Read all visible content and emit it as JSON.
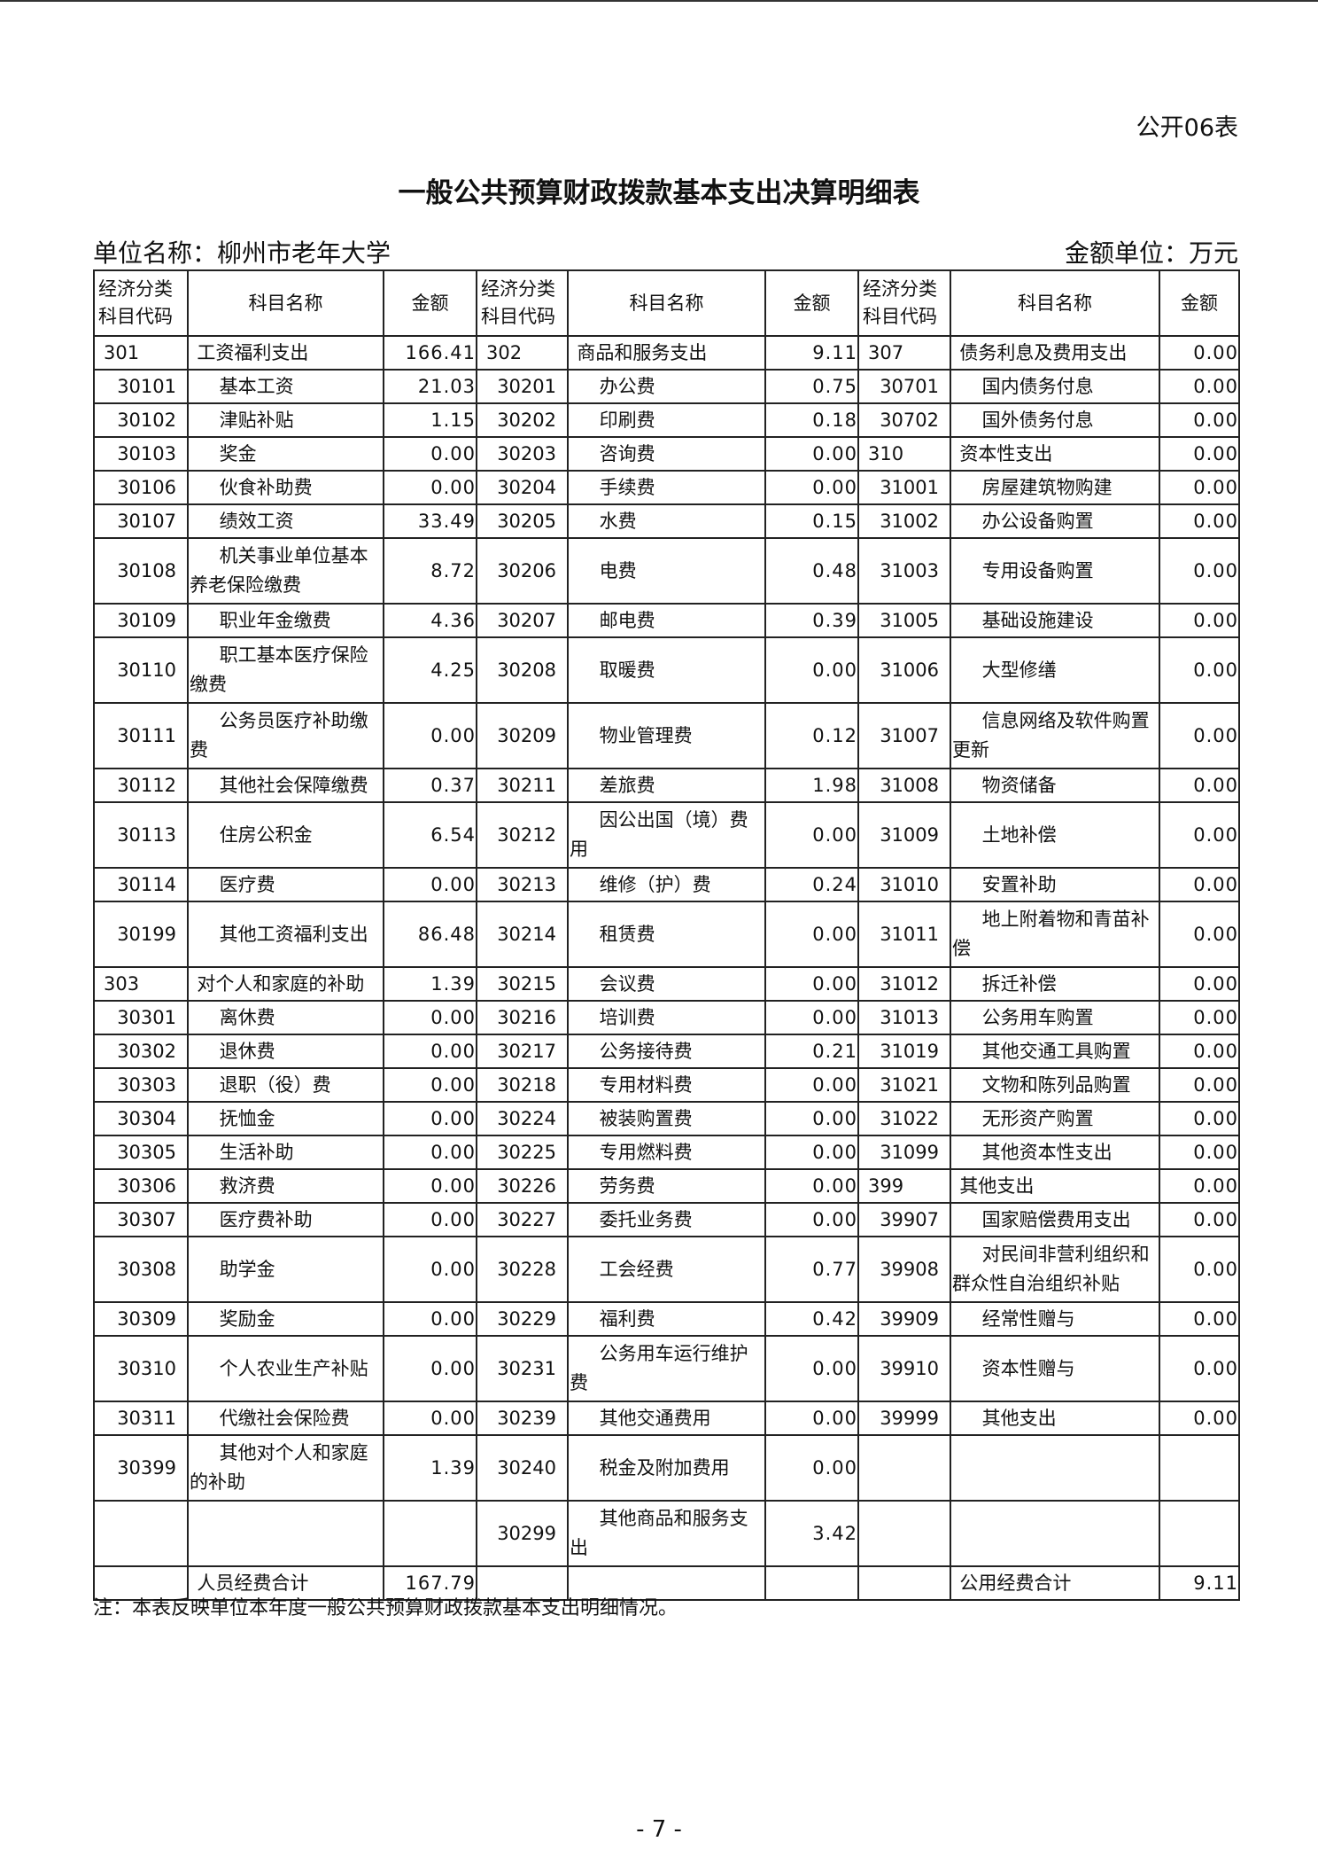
{
  "form_number": "公开06表",
  "title": "一般公共预算财政拨款基本支出决算明细表",
  "unit_name": "单位名称：柳州市老年大学",
  "amount_unit": "金额单位：万元",
  "headers": [
    "经济分类科目代码",
    "科目名称",
    "金额",
    "经济分类科目代码",
    "科目名称",
    "金额",
    "经济分类科目代码",
    "科目名称",
    "金额"
  ],
  "rows": [
    [
      "301",
      "工资福利支出",
      "166.41",
      "302",
      "商品和服务支出",
      "9.11",
      "307",
      "债务利息及费用支出",
      "0.00"
    ],
    [
      "30101",
      "基本工资",
      "21.03",
      "30201",
      "办公费",
      "0.75",
      "30701",
      "国内债务付息",
      "0.00"
    ],
    [
      "30102",
      "津贴补贴",
      "1.15",
      "30202",
      "印刷费",
      "0.18",
      "30702",
      "国外债务付息",
      "0.00"
    ],
    [
      "30103",
      "奖金",
      "0.00",
      "30203",
      "咨询费",
      "0.00",
      "310",
      "资本性支出",
      "0.00"
    ],
    [
      "30106",
      "伙食补助费",
      "0.00",
      "30204",
      "手续费",
      "0.00",
      "31001",
      "房屋建筑物购建",
      "0.00"
    ],
    [
      "30107",
      "绩效工资",
      "33.49",
      "30205",
      "水费",
      "0.15",
      "31002",
      "办公设备购置",
      "0.00"
    ],
    [
      "30108",
      "机关事业单位基本养老保险缴费",
      "8.72",
      "30206",
      "电费",
      "0.48",
      "31003",
      "专用设备购置",
      "0.00"
    ],
    [
      "30109",
      "职业年金缴费",
      "4.36",
      "30207",
      "邮电费",
      "0.39",
      "31005",
      "基础设施建设",
      "0.00"
    ],
    [
      "30110",
      "职工基本医疗保险缴费",
      "4.25",
      "30208",
      "取暖费",
      "0.00",
      "31006",
      "大型修缮",
      "0.00"
    ],
    [
      "30111",
      "公务员医疗补助缴费",
      "0.00",
      "30209",
      "物业管理费",
      "0.12",
      "31007",
      "信息网络及软件购置更新",
      "0.00"
    ],
    [
      "30112",
      "其他社会保障缴费",
      "0.37",
      "30211",
      "差旅费",
      "1.98",
      "31008",
      "物资储备",
      "0.00"
    ],
    [
      "30113",
      "住房公积金",
      "6.54",
      "30212",
      "因公出国（境）费用",
      "0.00",
      "31009",
      "土地补偿",
      "0.00"
    ],
    [
      "30114",
      "医疗费",
      "0.00",
      "30213",
      "维修（护）费",
      "0.24",
      "31010",
      "安置补助",
      "0.00"
    ],
    [
      "30199",
      "其他工资福利支出",
      "86.48",
      "30214",
      "租赁费",
      "0.00",
      "31011",
      "地上附着物和青苗补偿",
      "0.00"
    ],
    [
      "303",
      "对个人和家庭的补助",
      "1.39",
      "30215",
      "会议费",
      "0.00",
      "31012",
      "拆迁补偿",
      "0.00"
    ],
    [
      "30301",
      "离休费",
      "0.00",
      "30216",
      "培训费",
      "0.00",
      "31013",
      "公务用车购置",
      "0.00"
    ],
    [
      "30302",
      "退休费",
      "0.00",
      "30217",
      "公务接待费",
      "0.21",
      "31019",
      "其他交通工具购置",
      "0.00"
    ],
    [
      "30303",
      "退职（役）费",
      "0.00",
      "30218",
      "专用材料费",
      "0.00",
      "31021",
      "文物和陈列品购置",
      "0.00"
    ],
    [
      "30304",
      "抚恤金",
      "0.00",
      "30224",
      "被装购置费",
      "0.00",
      "31022",
      "无形资产购置",
      "0.00"
    ],
    [
      "30305",
      "生活补助",
      "0.00",
      "30225",
      "专用燃料费",
      "0.00",
      "31099",
      "其他资本性支出",
      "0.00"
    ],
    [
      "30306",
      "救济费",
      "0.00",
      "30226",
      "劳务费",
      "0.00",
      "399",
      "其他支出",
      "0.00"
    ],
    [
      "30307",
      "医疗费补助",
      "0.00",
      "30227",
      "委托业务费",
      "0.00",
      "39907",
      "国家赔偿费用支出",
      "0.00"
    ],
    [
      "30308",
      "助学金",
      "0.00",
      "30228",
      "工会经费",
      "0.77",
      "39908",
      "对民间非营利组织和群众性自治组织补贴",
      "0.00"
    ],
    [
      "30309",
      "奖励金",
      "0.00",
      "30229",
      "福利费",
      "0.42",
      "39909",
      "经常性赠与",
      "0.00"
    ],
    [
      "30310",
      "个人农业生产补贴",
      "0.00",
      "30231",
      "公务用车运行维护费",
      "0.00",
      "39910",
      "资本性赠与",
      "0.00"
    ],
    [
      "30311",
      "代缴社会保险费",
      "0.00",
      "30239",
      "其他交通费用",
      "0.00",
      "39999",
      "其他支出",
      "0.00"
    ],
    [
      "30399",
      "其他对个人和家庭的补助",
      "1.39",
      "30240",
      "税金及附加费用",
      "0.00",
      "",
      "",
      ""
    ],
    [
      "",
      "",
      "",
      "30299",
      "其他商品和服务支出",
      "3.42",
      "",
      "",
      ""
    ],
    [
      "",
      "人员经费合计",
      "167.79",
      "",
      "",
      "",
      "",
      "公用经费合计",
      "9.11"
    ]
  ],
  "note": "注：本表反映单位本年度一般公共预算财政拨款基本支出明细情况。",
  "page_number": "- 7 -"
}
